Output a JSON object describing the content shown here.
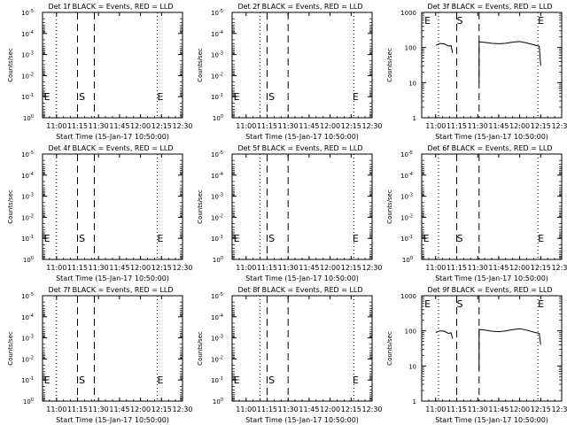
{
  "chart_data": [
    {
      "type": "line",
      "title": "Det 1f BLACK = Events, RED = LLD",
      "xlabel": "Start Time (15-Jan-17 10:50:00)",
      "ylabel": "Counts/sec",
      "x_ticks": [
        "11:00",
        "11:15",
        "11:30",
        "11:45",
        "12:00",
        "12:15",
        "12:30"
      ],
      "xlim": [
        "10:50",
        "12:30"
      ],
      "y_scale": "log",
      "ylim": [
        1,
        1e-05
      ],
      "y_ticks": [
        {
          "v": 1,
          "label": "10",
          "exp": "0"
        },
        {
          "v": 0.1,
          "label": "10",
          "exp": "-1"
        },
        {
          "v": 0.01,
          "label": "10",
          "exp": "-2"
        },
        {
          "v": 0.001,
          "label": "10",
          "exp": "-3"
        },
        {
          "v": 0.0001,
          "label": "10",
          "exp": "-4"
        },
        {
          "v": 1e-05,
          "label": "10",
          "exp": "-5"
        }
      ],
      "markers": {
        "dotted": [
          "11:00",
          "12:12"
        ],
        "dashed": [
          "11:15",
          "11:27"
        ]
      },
      "labels": [
        {
          "text": "E",
          "x": "10:51",
          "y": 0.1
        },
        {
          "text": "S",
          "x": "11:16",
          "y": 0.1
        },
        {
          "text": "E",
          "x": "12:12",
          "y": 0.1
        }
      ],
      "series": []
    },
    {
      "type": "line",
      "title": "Det 2f BLACK = Events, RED = LLD",
      "xlabel": "Start Time (15-Jan-17 10:50:00)",
      "ylabel": "Counts/sec",
      "x_ticks": [
        "11:00",
        "11:15",
        "11:30",
        "11:45",
        "12:00",
        "12:15",
        "12:30"
      ],
      "xlim": [
        "10:50",
        "12:30"
      ],
      "y_scale": "log",
      "ylim": [
        1,
        1e-05
      ],
      "y_ticks": [
        {
          "v": 1,
          "label": "10",
          "exp": "0"
        },
        {
          "v": 0.1,
          "label": "10",
          "exp": "-1"
        },
        {
          "v": 0.01,
          "label": "10",
          "exp": "-2"
        },
        {
          "v": 0.001,
          "label": "10",
          "exp": "-3"
        },
        {
          "v": 0.0001,
          "label": "10",
          "exp": "-4"
        },
        {
          "v": 1e-05,
          "label": "10",
          "exp": "-5"
        }
      ],
      "markers": {
        "dotted": [
          "11:10",
          "12:17"
        ],
        "dashed": [
          "11:15",
          "11:30"
        ]
      },
      "labels": [
        {
          "text": "E",
          "x": "10:51",
          "y": 0.1
        },
        {
          "text": "S",
          "x": "11:16",
          "y": 0.1
        },
        {
          "text": "E",
          "x": "12:16",
          "y": 0.1
        }
      ],
      "series": []
    },
    {
      "type": "line",
      "title": "Det 3f BLACK = Events, RED = LLD",
      "xlabel": "Start Time (15-Jan-17 10:50:00)",
      "ylabel": "Counts/sec",
      "x_ticks": [
        "11:00",
        "11:15",
        "11:30",
        "11:45",
        "12:00",
        "12:15",
        "12:30"
      ],
      "xlim": [
        "10:50",
        "12:30"
      ],
      "y_scale": "log",
      "ylim": [
        1,
        1000
      ],
      "y_ticks": [
        {
          "v": 1,
          "label": "1",
          "exp": ""
        },
        {
          "v": 10,
          "label": "10",
          "exp": ""
        },
        {
          "v": 100,
          "label": "100",
          "exp": ""
        },
        {
          "v": 1000,
          "label": "1000",
          "exp": ""
        }
      ],
      "markers": {
        "dotted": [
          "11:02",
          "12:13"
        ],
        "dashed": [
          "11:15",
          "11:31"
        ]
      },
      "labels": [
        {
          "text": "E",
          "x": "10:52",
          "y": 1000
        },
        {
          "text": "S",
          "x": "11:15",
          "y": 1000
        },
        {
          "text": "E",
          "x": "12:13",
          "y": 1000
        }
      ],
      "series": [
        {
          "segments": [
            [
              [
                "11:00",
                115
              ],
              [
                "11:03",
                130
              ],
              [
                "11:06",
                128
              ],
              [
                "11:09",
                110
              ],
              [
                "11:11",
                112
              ],
              [
                "11:12",
                70
              ]
            ],
            [
              [
                "11:31",
                10
              ],
              [
                "11:31",
                145
              ],
              [
                "11:35",
                140
              ],
              [
                "11:40",
                132
              ],
              [
                "11:45",
                128
              ],
              [
                "11:50",
                132
              ],
              [
                "11:55",
                142
              ],
              [
                "12:00",
                148
              ],
              [
                "12:05",
                135
              ],
              [
                "12:10",
                120
              ],
              [
                "12:14",
                108
              ],
              [
                "12:15",
                30
              ]
            ]
          ]
        }
      ]
    },
    {
      "type": "line",
      "title": "Det 4f BLACK = Events, RED = LLD",
      "xlabel": "Start Time (15-Jan-17 10:50:00)",
      "ylabel": "Counts/sec",
      "x_ticks": [
        "11:00",
        "11:15",
        "11:30",
        "11:45",
        "12:00",
        "12:15",
        "12:30"
      ],
      "xlim": [
        "10:50",
        "12:30"
      ],
      "y_scale": "log",
      "ylim": [
        1,
        1e-05
      ],
      "y_ticks": [
        {
          "v": 1,
          "label": "10",
          "exp": "0"
        },
        {
          "v": 0.1,
          "label": "10",
          "exp": "-1"
        },
        {
          "v": 0.01,
          "label": "10",
          "exp": "-2"
        },
        {
          "v": 0.001,
          "label": "10",
          "exp": "-3"
        },
        {
          "v": 0.0001,
          "label": "10",
          "exp": "-4"
        },
        {
          "v": 1e-05,
          "label": "10",
          "exp": "-5"
        }
      ],
      "markers": {
        "dotted": [
          "11:00",
          "12:12"
        ],
        "dashed": [
          "11:15",
          "11:27"
        ]
      },
      "labels": [
        {
          "text": "E",
          "x": "10:51",
          "y": 0.1
        },
        {
          "text": "S",
          "x": "11:16",
          "y": 0.1
        },
        {
          "text": "E",
          "x": "12:12",
          "y": 0.1
        }
      ],
      "series": []
    },
    {
      "type": "line",
      "title": "Det 5f BLACK = Events, RED = LLD",
      "xlabel": "Start Time (15-Jan-17 10:50:00)",
      "ylabel": "Counts/sec",
      "x_ticks": [
        "11:00",
        "11:15",
        "11:30",
        "11:45",
        "12:00",
        "12:15",
        "12:30"
      ],
      "xlim": [
        "10:50",
        "12:30"
      ],
      "y_scale": "log",
      "ylim": [
        1,
        1e-05
      ],
      "y_ticks": [
        {
          "v": 1,
          "label": "10",
          "exp": "0"
        },
        {
          "v": 0.1,
          "label": "10",
          "exp": "-1"
        },
        {
          "v": 0.01,
          "label": "10",
          "exp": "-2"
        },
        {
          "v": 0.001,
          "label": "10",
          "exp": "-3"
        },
        {
          "v": 0.0001,
          "label": "10",
          "exp": "-4"
        },
        {
          "v": 1e-05,
          "label": "10",
          "exp": "-5"
        }
      ],
      "markers": {
        "dotted": [
          "11:10",
          "12:17"
        ],
        "dashed": [
          "11:15",
          "11:30"
        ]
      },
      "labels": [
        {
          "text": "E",
          "x": "10:51",
          "y": 0.1
        },
        {
          "text": "S",
          "x": "11:16",
          "y": 0.1
        },
        {
          "text": "E",
          "x": "12:16",
          "y": 0.1
        }
      ],
      "series": []
    },
    {
      "type": "line",
      "title": "Det 6f BLACK = Events, RED = LLD",
      "xlabel": "Start Time (15-Jan-17 10:50:00)",
      "ylabel": "Counts/sec",
      "x_ticks": [
        "11:00",
        "11:15",
        "11:30",
        "11:45",
        "12:00",
        "12:15",
        "12:30"
      ],
      "xlim": [
        "10:50",
        "12:30"
      ],
      "y_scale": "log",
      "ylim": [
        1,
        1e-05
      ],
      "y_ticks": [
        {
          "v": 1,
          "label": "10",
          "exp": "0"
        },
        {
          "v": 0.1,
          "label": "10",
          "exp": "-1"
        },
        {
          "v": 0.01,
          "label": "10",
          "exp": "-2"
        },
        {
          "v": 0.001,
          "label": "10",
          "exp": "-3"
        },
        {
          "v": 0.0001,
          "label": "10",
          "exp": "-4"
        },
        {
          "v": 1e-05,
          "label": "10",
          "exp": "-5"
        }
      ],
      "markers": {
        "dotted": [
          "11:02",
          "12:13"
        ],
        "dashed": [
          "11:15",
          "11:31"
        ]
      },
      "labels": [
        {
          "text": "E",
          "x": "10:51",
          "y": 0.1
        },
        {
          "text": "S",
          "x": "11:15",
          "y": 0.1
        },
        {
          "text": "E",
          "x": "12:13",
          "y": 0.1
        }
      ],
      "series": []
    },
    {
      "type": "line",
      "title": "Det 7f BLACK = Events, RED = LLD",
      "xlabel": "Start Time (15-Jan-17 10:50:00)",
      "ylabel": "Counts/sec",
      "x_ticks": [
        "11:00",
        "11:15",
        "11:30",
        "11:45",
        "12:00",
        "12:15",
        "12:30"
      ],
      "xlim": [
        "10:50",
        "12:30"
      ],
      "y_scale": "log",
      "ylim": [
        1,
        1e-05
      ],
      "y_ticks": [
        {
          "v": 1,
          "label": "10",
          "exp": "0"
        },
        {
          "v": 0.1,
          "label": "10",
          "exp": "-1"
        },
        {
          "v": 0.01,
          "label": "10",
          "exp": "-2"
        },
        {
          "v": 0.001,
          "label": "10",
          "exp": "-3"
        },
        {
          "v": 0.0001,
          "label": "10",
          "exp": "-4"
        },
        {
          "v": 1e-05,
          "label": "10",
          "exp": "-5"
        }
      ],
      "markers": {
        "dotted": [
          "11:00",
          "12:12"
        ],
        "dashed": [
          "11:15",
          "11:27"
        ]
      },
      "labels": [
        {
          "text": "E",
          "x": "10:51",
          "y": 0.1
        },
        {
          "text": "S",
          "x": "11:16",
          "y": 0.1
        },
        {
          "text": "E",
          "x": "12:12",
          "y": 0.1
        }
      ],
      "series": []
    },
    {
      "type": "line",
      "title": "Det 8f BLACK = Events, RED = LLD",
      "xlabel": "Start Time (15-Jan-17 10:50:00)",
      "ylabel": "Counts/sec",
      "x_ticks": [
        "11:00",
        "11:15",
        "11:30",
        "11:45",
        "12:00",
        "12:15",
        "12:30"
      ],
      "xlim": [
        "10:50",
        "12:30"
      ],
      "y_scale": "log",
      "ylim": [
        1,
        1e-05
      ],
      "y_ticks": [
        {
          "v": 1,
          "label": "10",
          "exp": "0"
        },
        {
          "v": 0.1,
          "label": "10",
          "exp": "-1"
        },
        {
          "v": 0.01,
          "label": "10",
          "exp": "-2"
        },
        {
          "v": 0.001,
          "label": "10",
          "exp": "-3"
        },
        {
          "v": 0.0001,
          "label": "10",
          "exp": "-4"
        },
        {
          "v": 1e-05,
          "label": "10",
          "exp": "-5"
        }
      ],
      "markers": {
        "dotted": [
          "11:10",
          "12:17"
        ],
        "dashed": [
          "11:15",
          "11:30"
        ]
      },
      "labels": [
        {
          "text": "E",
          "x": "10:51",
          "y": 0.1
        },
        {
          "text": "S",
          "x": "11:16",
          "y": 0.1
        },
        {
          "text": "E",
          "x": "12:16",
          "y": 0.1
        }
      ],
      "series": []
    },
    {
      "type": "line",
      "title": "Det 9f BLACK = Events, RED = LLD",
      "xlabel": "Start Time (15-Jan-17 10:50:00)",
      "ylabel": "Counts/sec",
      "x_ticks": [
        "11:00",
        "11:15",
        "11:30",
        "11:45",
        "12:00",
        "12:15",
        "12:30"
      ],
      "xlim": [
        "10:50",
        "12:30"
      ],
      "y_scale": "log",
      "ylim": [
        1,
        1000
      ],
      "y_ticks": [
        {
          "v": 1,
          "label": "1",
          "exp": ""
        },
        {
          "v": 10,
          "label": "10",
          "exp": ""
        },
        {
          "v": 100,
          "label": "100",
          "exp": ""
        },
        {
          "v": 1000,
          "label": "1000",
          "exp": ""
        }
      ],
      "markers": {
        "dotted": [
          "11:02",
          "12:13"
        ],
        "dashed": [
          "11:15",
          "11:31"
        ]
      },
      "labels": [
        {
          "text": "E",
          "x": "10:52",
          "y": 1000
        },
        {
          "text": "S",
          "x": "11:15",
          "y": 1000
        },
        {
          "text": "E",
          "x": "12:13",
          "y": 1000
        }
      ],
      "series": [
        {
          "segments": [
            [
              [
                "11:00",
                90
              ],
              [
                "11:03",
                100
              ],
              [
                "11:06",
                98
              ],
              [
                "11:09",
                85
              ],
              [
                "11:11",
                88
              ],
              [
                "11:12",
                60
              ]
            ],
            [
              [
                "11:31",
                8
              ],
              [
                "11:31",
                110
              ],
              [
                "11:35",
                105
              ],
              [
                "11:40",
                98
              ],
              [
                "11:45",
                95
              ],
              [
                "11:50",
                100
              ],
              [
                "11:55",
                108
              ],
              [
                "12:00",
                115
              ],
              [
                "12:05",
                105
              ],
              [
                "12:10",
                92
              ],
              [
                "12:14",
                85
              ],
              [
                "12:15",
                40
              ]
            ]
          ]
        }
      ]
    }
  ]
}
